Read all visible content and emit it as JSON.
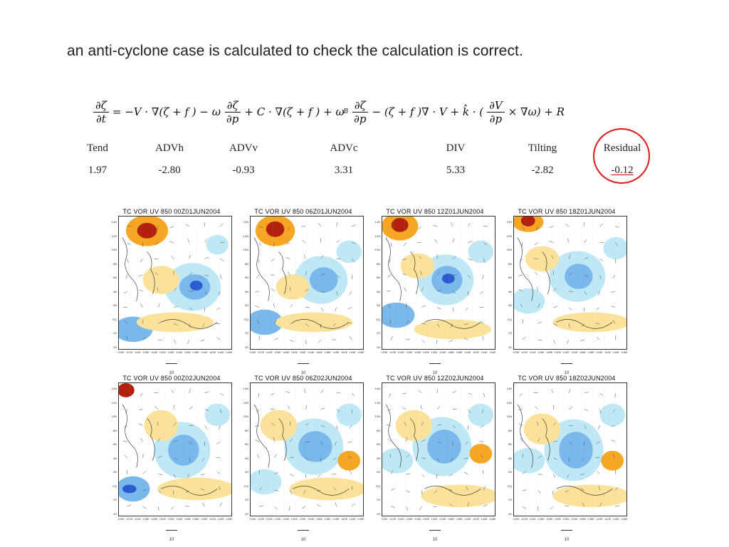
{
  "slide": {
    "title": "an anti-cyclone case is calculated to check the calculation is correct."
  },
  "equation": {
    "lhs_num": "∂ζ",
    "lhs_den": "∂t",
    "seg1": "= −V · ∇(ζ + f ) − ω",
    "f1_num": "∂ζ",
    "f1_den": "∂p",
    "seg2": "+ C · ∇(ζ + f ) + ω",
    "sub_b": "B",
    "f2_num": "∂ζ",
    "f2_den": "∂p",
    "seg3": "− (ζ + f )∇ · V + k̂ · (",
    "f3_num": "∂V",
    "f3_den": "∂p",
    "seg4": "× ∇ω) + R"
  },
  "terms": [
    {
      "name": "Tend",
      "value": "1.97"
    },
    {
      "name": "ADVh",
      "value": "-2.80"
    },
    {
      "name": "ADVv",
      "value": "-0.93"
    },
    {
      "name": "ADVc",
      "value": "3.31"
    },
    {
      "name": "DIV",
      "value": "5.33"
    },
    {
      "name": "Tilting",
      "value": "-2.82"
    },
    {
      "name": "Residual",
      "value": "-0.12"
    }
  ],
  "colors": {
    "positive_strong": "#b3200e",
    "positive_mid": "#f5a623",
    "positive_weak": "#fbe29a",
    "negative_weak": "#bfe8f7",
    "negative_mid": "#7ab8ec",
    "negative_strong": "#2a5bd0",
    "highlight": "#e01818"
  },
  "map_axes": {
    "lat_ticks": [
      "14N",
      "12N",
      "10N",
      "8N",
      "6N",
      "4N",
      "2N",
      "EQ",
      "2S",
      "4S"
    ],
    "lon_ticks": [
      "120E",
      "122E",
      "124E",
      "126E",
      "128E",
      "130E",
      "132E",
      "134E",
      "136E",
      "138E",
      "140E",
      "142E",
      "144E",
      "146E"
    ],
    "ref_vector_label": "10"
  },
  "maps": [
    {
      "title": "TC   VOR  UV  850  00Z01JUN2004",
      "variant": 0
    },
    {
      "title": "TC   VOR  UV  850  06Z01JUN2004",
      "variant": 1
    },
    {
      "title": "TC   VOR  UV  850  12Z01JUN2004",
      "variant": 2
    },
    {
      "title": "TC   VOR  UV  850  18Z01JUN2004",
      "variant": 3
    },
    {
      "title": "TC   VOR  UV  850  00Z02JUN2004",
      "variant": 4
    },
    {
      "title": "TC   VOR  UV  850  06Z02JUN2004",
      "variant": 5
    },
    {
      "title": "TC   VOR  UV  850  12Z02JUN2004",
      "variant": 6
    },
    {
      "title": "TC   VOR  UV  850  18Z02JUN2004",
      "variant": 7
    }
  ]
}
